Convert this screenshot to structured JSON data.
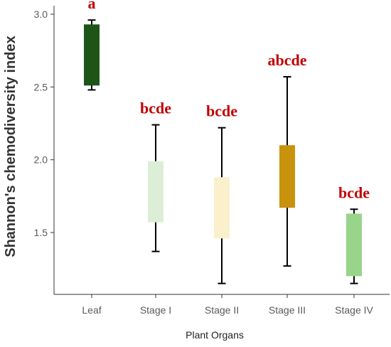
{
  "chart_data": {
    "type": "box",
    "xlabel": "Plant Organs",
    "ylabel": "Shannon's chemodiversity index",
    "ylim": [
      1.05,
      3.05
    ],
    "yticks": [
      1.5,
      2.0,
      2.5,
      3.0
    ],
    "ytick_labels": [
      "1.5",
      "2.0",
      "2.5",
      "3.0"
    ],
    "grid": false,
    "categories": [
      "Leaf",
      "Stage I",
      "Stage II",
      "Stage III",
      "Stage IV"
    ],
    "boxes": [
      {
        "category": "Leaf",
        "whisker_low": 2.48,
        "q1": 2.51,
        "q3": 2.93,
        "whisker_high": 2.96,
        "color": "#1e5418",
        "label": "a"
      },
      {
        "category": "Stage I",
        "whisker_low": 1.37,
        "q1": 1.57,
        "q3": 1.99,
        "whisker_high": 2.24,
        "color": "#dcefd6",
        "label": "bcde"
      },
      {
        "category": "Stage II",
        "whisker_low": 1.15,
        "q1": 1.46,
        "q3": 1.88,
        "whisker_high": 2.22,
        "color": "#fbf0cc",
        "label": "bcde"
      },
      {
        "category": "Stage III",
        "whisker_low": 1.27,
        "q1": 1.67,
        "q3": 2.1,
        "whisker_high": 2.57,
        "color": "#c8920c",
        "label": "abcde"
      },
      {
        "category": "Stage IV",
        "whisker_low": 1.15,
        "q1": 1.2,
        "q3": 1.63,
        "whisker_high": 1.66,
        "color": "#98d48a",
        "label": "bcde"
      }
    ],
    "label_color": "#c00000"
  }
}
